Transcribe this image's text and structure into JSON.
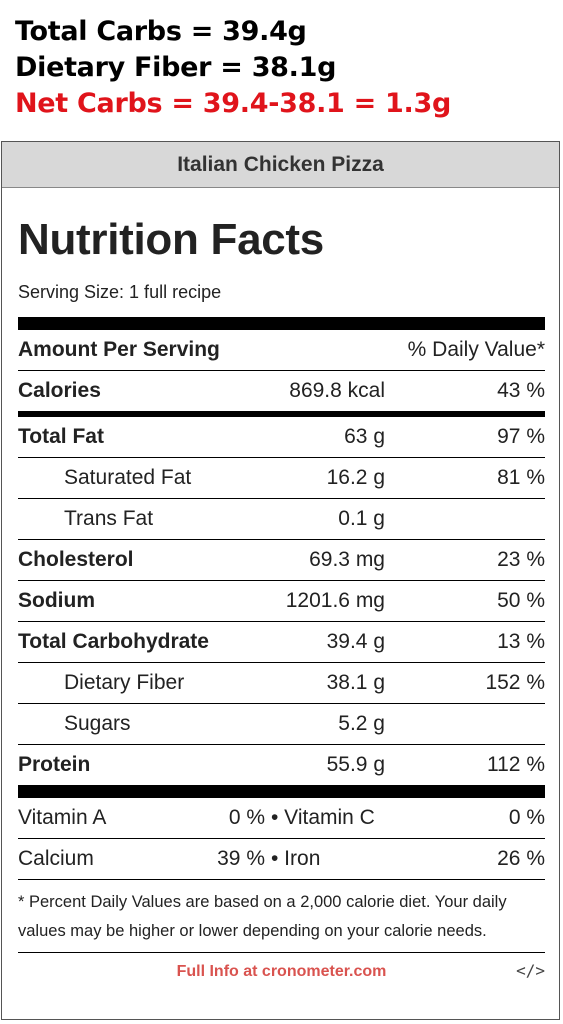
{
  "notes": {
    "total_carbs": "Total Carbs = 39.4g",
    "dietary_fiber": "Dietary Fiber = 38.1g",
    "net_carbs": "Net Carbs = 39.4-38.1 = 1.3g"
  },
  "colors": {
    "net_carbs": "#e0141b",
    "link": "#d9534f",
    "title_bar": "#d8d8d8"
  },
  "card": {
    "recipe_title": "Italian Chicken Pizza",
    "heading": "Nutrition Facts",
    "serving_size": "Serving Size: 1 full recipe",
    "amount_per_serving": "Amount Per Serving",
    "daily_value_header": "% Daily Value*"
  },
  "nutrients": {
    "calories": {
      "name": "Calories",
      "amount": "869.8 kcal",
      "dv": "43 %"
    },
    "total_fat": {
      "name": "Total Fat",
      "amount": "63 g",
      "dv": "97 %"
    },
    "saturated_fat": {
      "name": "Saturated Fat",
      "amount": "16.2 g",
      "dv": "81 %"
    },
    "trans_fat": {
      "name": "Trans Fat",
      "amount": "0.1 g",
      "dv": ""
    },
    "cholesterol": {
      "name": "Cholesterol",
      "amount": "69.3 mg",
      "dv": "23 %"
    },
    "sodium": {
      "name": "Sodium",
      "amount": "1201.6 mg",
      "dv": "50 %"
    },
    "total_carbohydrate": {
      "name": "Total Carbohydrate",
      "amount": "39.4 g",
      "dv": "13 %"
    },
    "dietary_fiber": {
      "name": "Dietary Fiber",
      "amount": "38.1 g",
      "dv": "152 %"
    },
    "sugars": {
      "name": "Sugars",
      "amount": "5.2 g",
      "dv": ""
    },
    "protein": {
      "name": "Protein",
      "amount": "55.9 g",
      "dv": "112 %"
    }
  },
  "vitamins": {
    "vitamin_a": {
      "name": "Vitamin A",
      "value": "0 %"
    },
    "vitamin_c": {
      "name": "• Vitamin C",
      "value": "0 %"
    },
    "calcium": {
      "name": "Calcium",
      "value": "39 %"
    },
    "iron": {
      "name": "• Iron",
      "value": "26 %"
    }
  },
  "footnote": "* Percent Daily Values are based on a 2,000 calorie diet. Your daily values may be higher or lower depending on your calorie needs.",
  "footer": {
    "link_text": "Full Info at cronometer.com",
    "embed_icon": "</>"
  }
}
